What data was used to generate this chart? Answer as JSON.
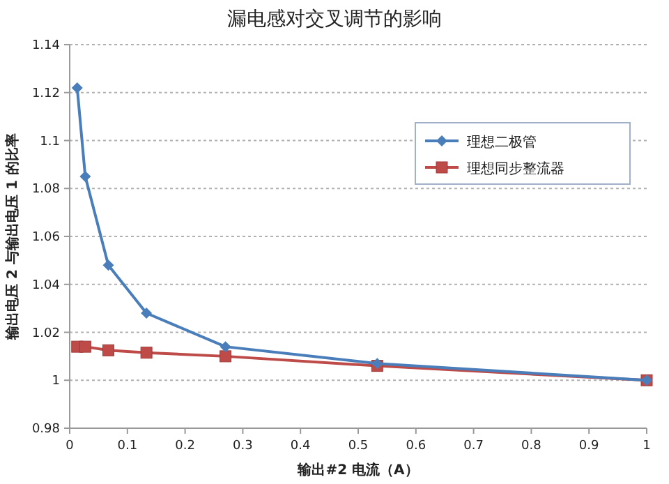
{
  "chart_data": {
    "type": "line",
    "title": "漏电感对交叉调节的影响",
    "xlabel": "输出#2 电流（A）",
    "ylabel": "输出电压 2 与输出电压 1 的比率",
    "xlim": [
      0,
      1
    ],
    "xticks": [
      0,
      0.1,
      0.2,
      0.3,
      0.4,
      0.5,
      0.6,
      0.7,
      0.8,
      0.9,
      1
    ],
    "ylim": [
      0.98,
      1.14
    ],
    "yticks": [
      0.98,
      1,
      1.02,
      1.04,
      1.06,
      1.08,
      1.1,
      1.12,
      1.14
    ],
    "grid": "y",
    "legend": "top right",
    "line_style": "solid",
    "series": [
      {
        "name": "理想二极管",
        "color": "#4a7ebb",
        "marker": "diamond",
        "x": [
          0.013,
          0.027,
          0.067,
          0.133,
          0.27,
          0.533,
          1
        ],
        "values": [
          1.122,
          1.085,
          1.048,
          1.028,
          1.014,
          1.007,
          1.0
        ]
      },
      {
        "name": "理想同步整流器",
        "color": "#be4b48",
        "marker": "square",
        "x": [
          0.013,
          0.027,
          0.067,
          0.133,
          0.27,
          0.533,
          1
        ],
        "values": [
          1.014,
          1.014,
          1.0125,
          1.0115,
          1.01,
          1.006,
          1.0
        ]
      }
    ]
  }
}
